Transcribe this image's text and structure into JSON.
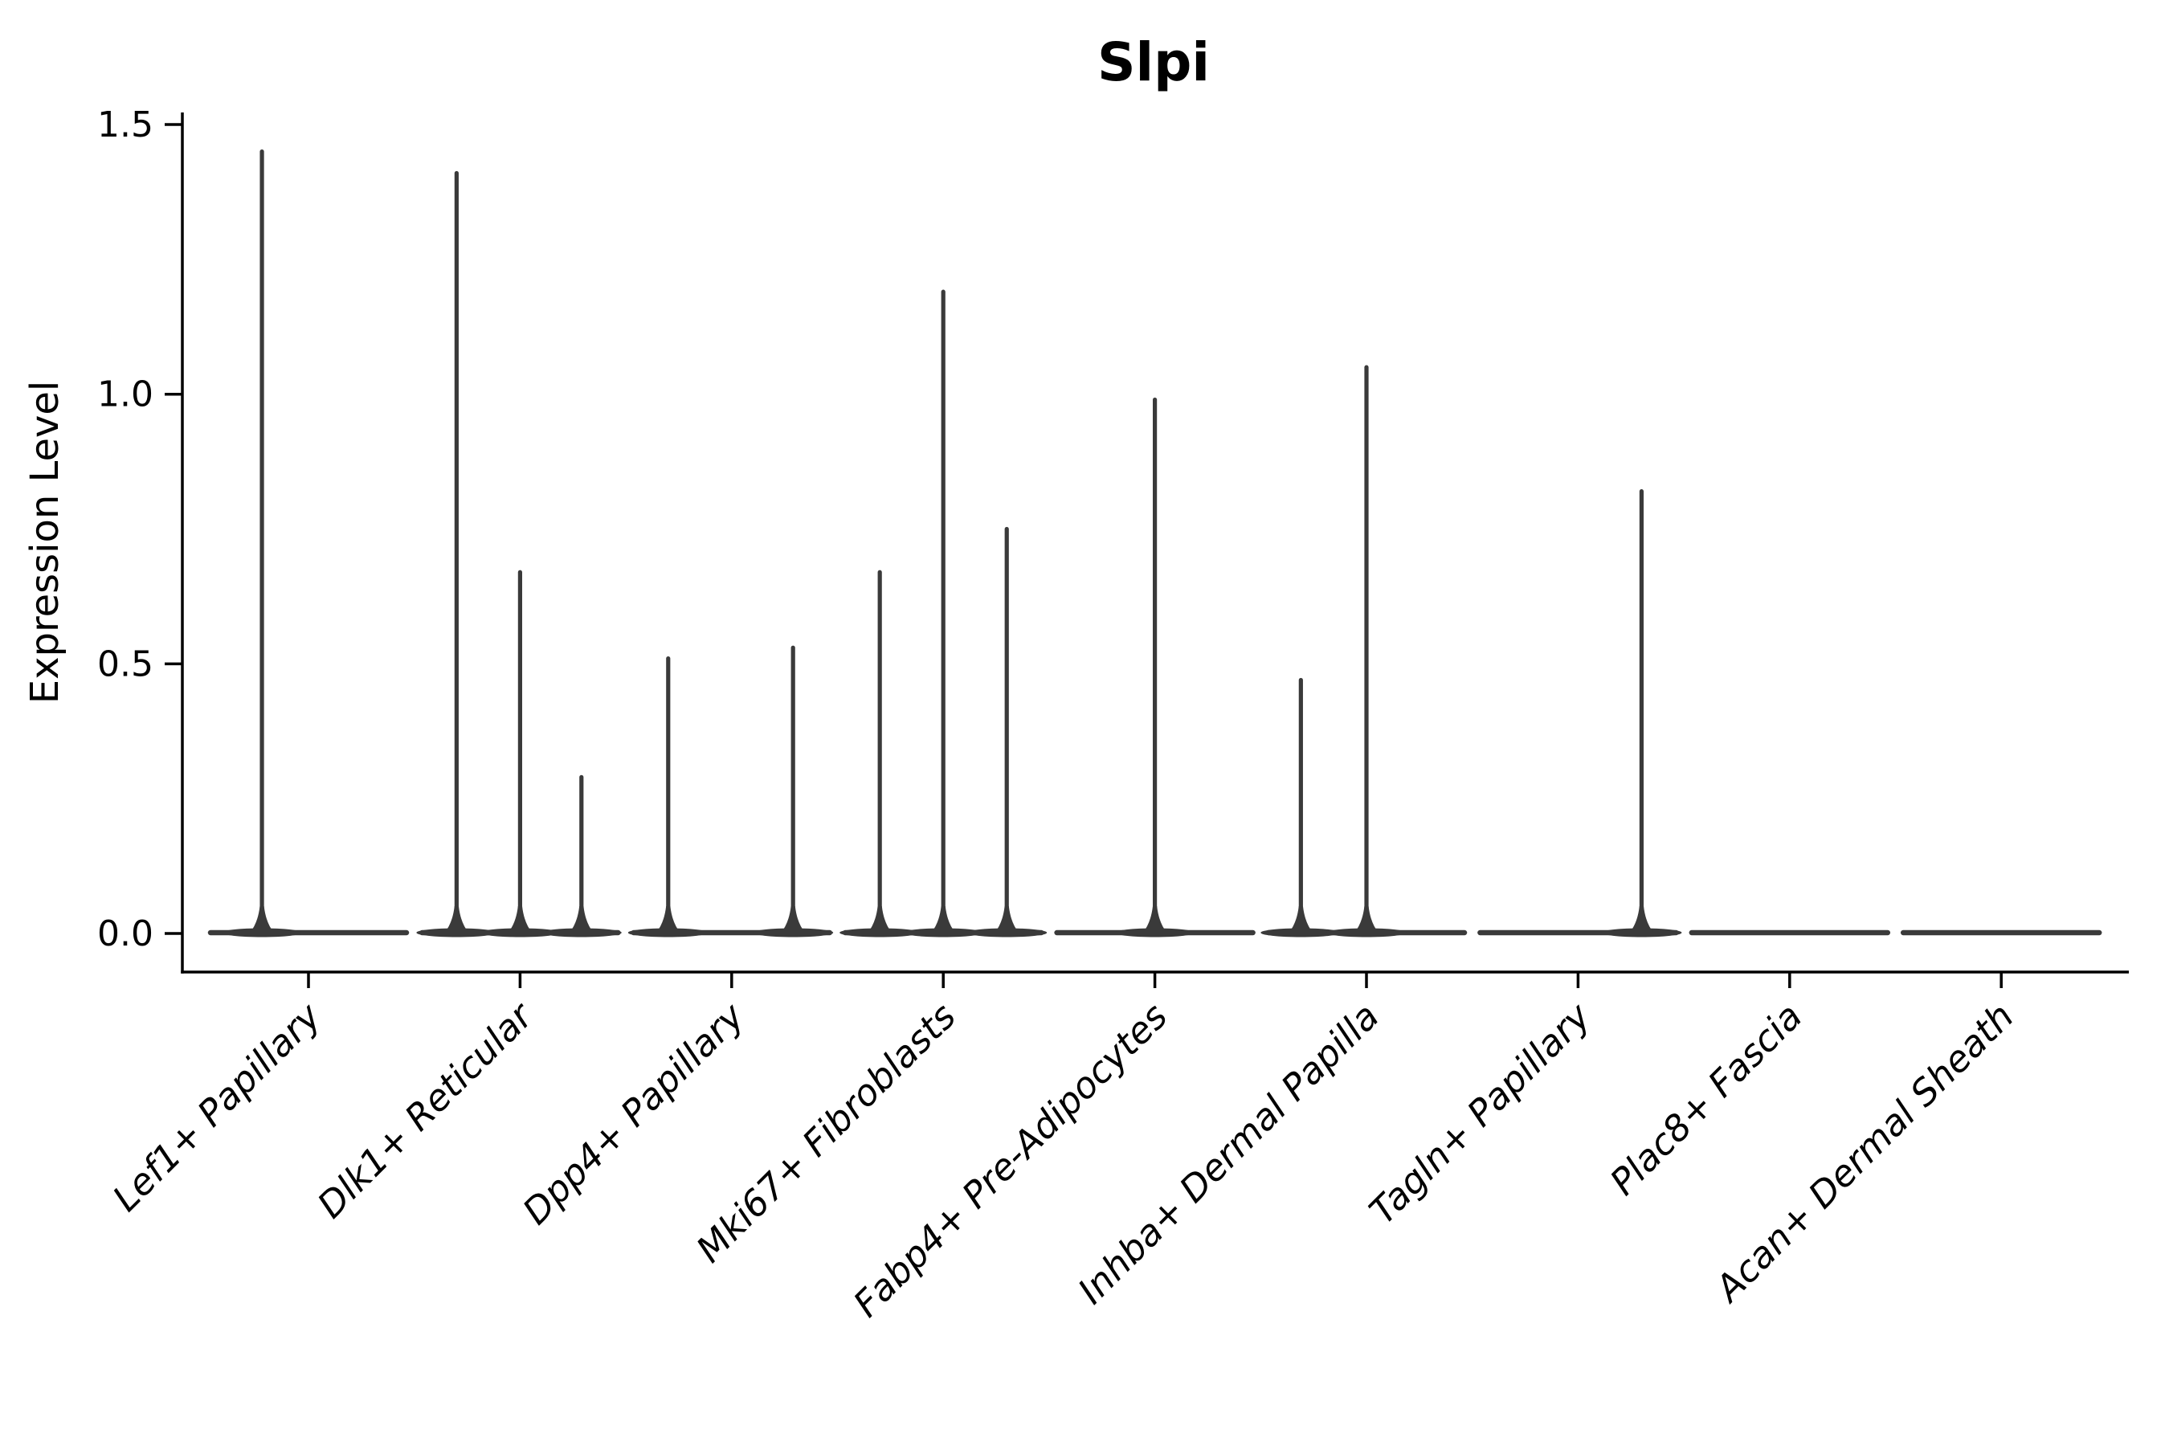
{
  "chart_data": {
    "type": "violin",
    "title": "Slpi",
    "xlabel": "",
    "ylabel": "Expression Level",
    "grid": false,
    "legend": "none",
    "ylim": [
      -0.07,
      1.52
    ],
    "x_tick_rotation_deg": 45,
    "yticks": [
      {
        "value": 0.0,
        "label": "0.0"
      },
      {
        "value": 0.5,
        "label": "0.5"
      },
      {
        "value": 1.0,
        "label": "1.0"
      },
      {
        "value": 1.5,
        "label": "1.5"
      }
    ],
    "categories": [
      "Lef1+ Papillary",
      "Dlk1+ Reticular",
      "Dpp4+ Papillary",
      "Mki67+ Fibroblasts",
      "Fabp4+ Pre-Adipocytes",
      "Inhba+ Dermal Papilla",
      "Tagln+ Papillary",
      "Plac8+ Fascia",
      "Acan+ Dermal Sheath"
    ],
    "violins": [
      {
        "category": "Lef1+ Papillary",
        "base_max": 0.0,
        "spikes": [
          {
            "offset_frac": -0.22,
            "max": 1.45
          }
        ]
      },
      {
        "category": "Dlk1+ Reticular",
        "base_max": 0.0,
        "spikes": [
          {
            "offset_frac": -0.3,
            "max": 1.41
          },
          {
            "offset_frac": 0.0,
            "max": 0.67
          },
          {
            "offset_frac": 0.29,
            "max": 0.29
          }
        ]
      },
      {
        "category": "Dpp4+ Papillary",
        "base_max": 0.0,
        "spikes": [
          {
            "offset_frac": -0.3,
            "max": 0.51
          },
          {
            "offset_frac": 0.29,
            "max": 0.53
          }
        ]
      },
      {
        "category": "Mki67+ Fibroblasts",
        "base_max": 0.0,
        "spikes": [
          {
            "offset_frac": -0.3,
            "max": 0.67
          },
          {
            "offset_frac": 0.0,
            "max": 1.19
          },
          {
            "offset_frac": 0.3,
            "max": 0.75
          }
        ]
      },
      {
        "category": "Fabp4+ Pre-Adipocytes",
        "base_max": 0.0,
        "spikes": [
          {
            "offset_frac": 0.0,
            "max": 0.99
          }
        ]
      },
      {
        "category": "Inhba+ Dermal Papilla",
        "base_max": 0.0,
        "spikes": [
          {
            "offset_frac": -0.31,
            "max": 0.47
          },
          {
            "offset_frac": 0.0,
            "max": 1.05
          }
        ]
      },
      {
        "category": "Tagln+ Papillary",
        "base_max": 0.0,
        "spikes": [
          {
            "offset_frac": 0.3,
            "max": 0.82
          }
        ]
      },
      {
        "category": "Plac8+ Fascia",
        "base_max": 0.0,
        "spikes": []
      },
      {
        "category": "Acan+ Dermal Sheath",
        "base_max": 0.0,
        "spikes": []
      }
    ],
    "colors": {
      "violin": "#3a3a3a",
      "axis": "#000000",
      "text": "#000000",
      "background": "#ffffff"
    }
  }
}
